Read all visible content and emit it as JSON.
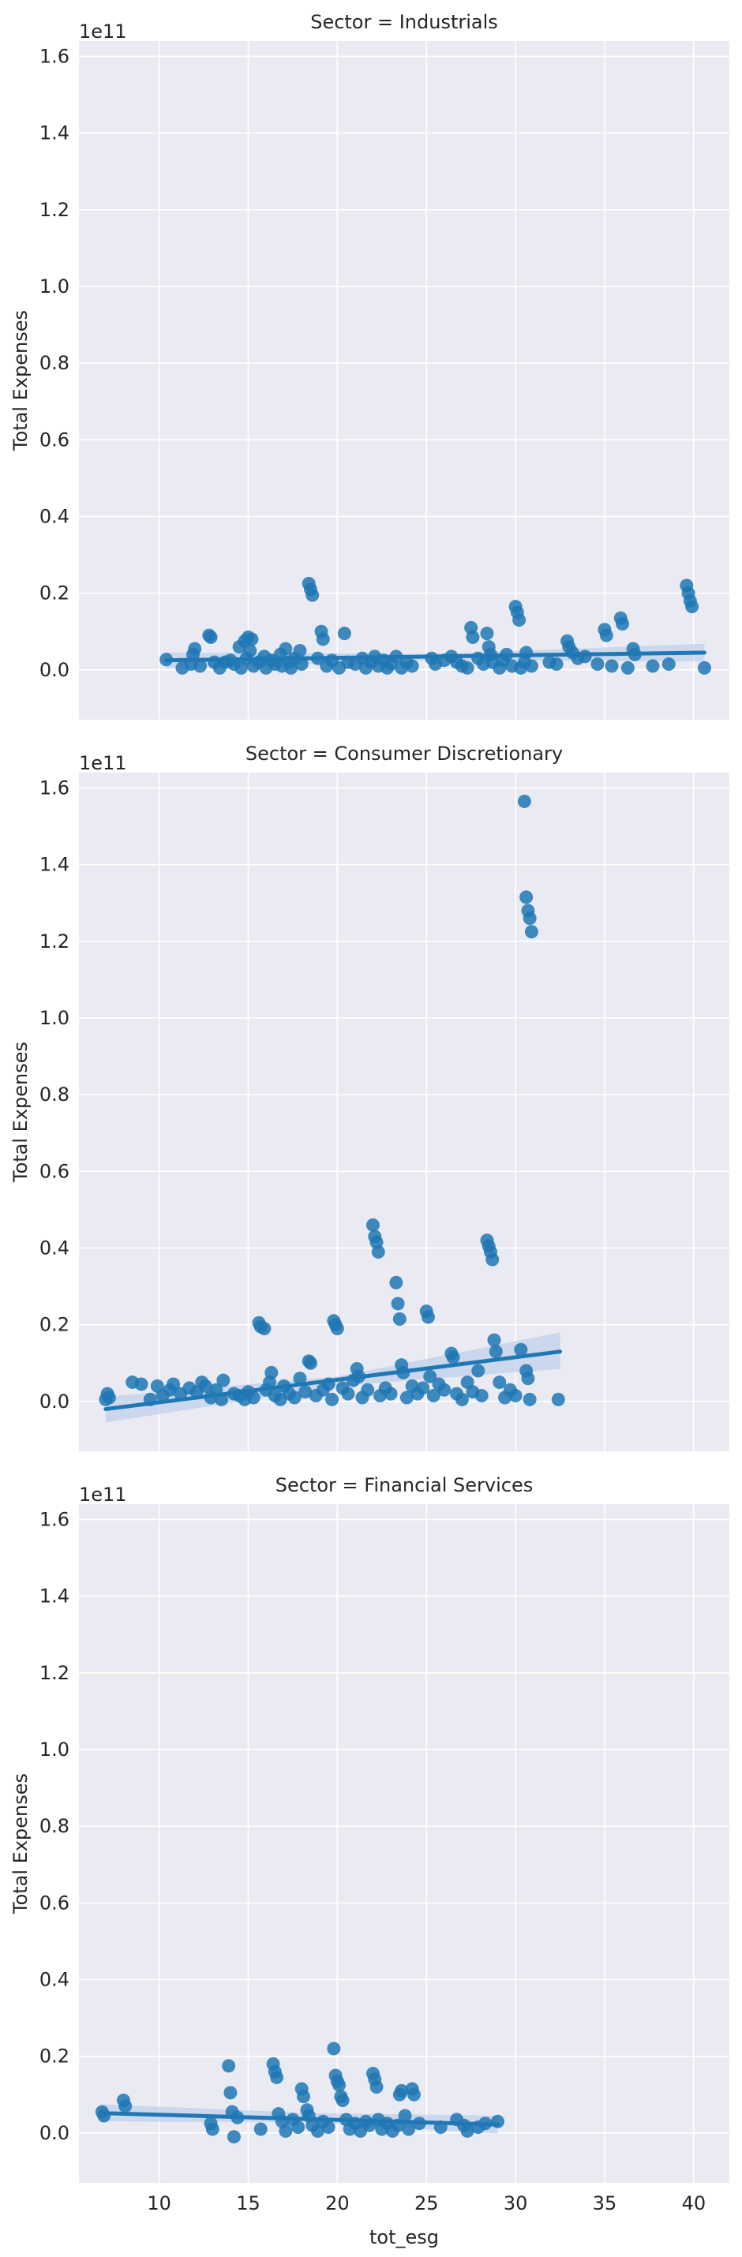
{
  "figure": {
    "accent_color": "#1f77b4",
    "ci_color": "#aec7e8",
    "panel_background": "#eaeaf2",
    "xlabel": "tot_esg"
  },
  "chart_data": [
    {
      "type": "scatter",
      "title": "Sector = Industrials",
      "ylabel": "Total Expenses",
      "y_offset_label": "1e11",
      "xlim": [
        5.5,
        42.0
      ],
      "ylim": [
        -0.13,
        1.64
      ],
      "xticks": [
        10,
        15,
        20,
        25,
        30,
        35,
        40
      ],
      "yticks": [
        0.0,
        0.2,
        0.4,
        0.6,
        0.8,
        1.0,
        1.2,
        1.4,
        1.6
      ],
      "ytick_labels": [
        "0.0",
        "0.2",
        "0.4",
        "0.6",
        "0.8",
        "1.0",
        "1.2",
        "1.4",
        "1.6"
      ],
      "show_xtick_labels": false,
      "regression": {
        "x": [
          10.4,
          40.6
        ],
        "y": [
          0.025,
          0.045
        ]
      },
      "ci_band": {
        "x": [
          10.4,
          25.5,
          40.6
        ],
        "lower": [
          0.005,
          0.025,
          0.022
        ],
        "upper": [
          0.045,
          0.042,
          0.068
        ]
      },
      "points": [
        [
          10.4,
          0.027
        ],
        [
          11.3,
          0.005
        ],
        [
          11.8,
          0.015
        ],
        [
          11.9,
          0.04
        ],
        [
          12.0,
          0.055
        ],
        [
          12.3,
          0.01
        ],
        [
          12.8,
          0.09
        ],
        [
          12.9,
          0.085
        ],
        [
          13.1,
          0.02
        ],
        [
          13.4,
          0.005
        ],
        [
          13.7,
          0.02
        ],
        [
          14.0,
          0.025
        ],
        [
          14.2,
          0.015
        ],
        [
          14.5,
          0.06
        ],
        [
          14.6,
          0.005
        ],
        [
          14.8,
          0.075
        ],
        [
          14.9,
          0.03
        ],
        [
          15.0,
          0.085
        ],
        [
          15.1,
          0.05
        ],
        [
          15.2,
          0.08
        ],
        [
          15.3,
          0.01
        ],
        [
          15.6,
          0.02
        ],
        [
          15.9,
          0.035
        ],
        [
          16.0,
          0.005
        ],
        [
          16.3,
          0.025
        ],
        [
          16.5,
          0.015
        ],
        [
          16.8,
          0.04
        ],
        [
          16.9,
          0.01
        ],
        [
          17.1,
          0.055
        ],
        [
          17.3,
          0.02
        ],
        [
          17.4,
          0.005
        ],
        [
          17.6,
          0.03
        ],
        [
          17.9,
          0.05
        ],
        [
          18.0,
          0.015
        ],
        [
          18.4,
          0.225
        ],
        [
          18.5,
          0.21
        ],
        [
          18.6,
          0.195
        ],
        [
          18.9,
          0.03
        ],
        [
          19.1,
          0.1
        ],
        [
          19.2,
          0.08
        ],
        [
          19.4,
          0.01
        ],
        [
          19.7,
          0.025
        ],
        [
          20.1,
          0.005
        ],
        [
          20.4,
          0.095
        ],
        [
          20.6,
          0.02
        ],
        [
          21.0,
          0.015
        ],
        [
          21.4,
          0.03
        ],
        [
          21.6,
          0.005
        ],
        [
          21.9,
          0.02
        ],
        [
          22.1,
          0.035
        ],
        [
          22.3,
          0.01
        ],
        [
          22.6,
          0.025
        ],
        [
          22.8,
          0.005
        ],
        [
          23.0,
          0.015
        ],
        [
          23.3,
          0.035
        ],
        [
          23.6,
          0.005
        ],
        [
          23.9,
          0.02
        ],
        [
          24.2,
          0.01
        ],
        [
          25.3,
          0.03
        ],
        [
          25.5,
          0.015
        ],
        [
          26.0,
          0.025
        ],
        [
          26.4,
          0.035
        ],
        [
          26.7,
          0.02
        ],
        [
          27.0,
          0.01
        ],
        [
          27.3,
          0.005
        ],
        [
          27.5,
          0.11
        ],
        [
          27.6,
          0.085
        ],
        [
          27.9,
          0.03
        ],
        [
          28.2,
          0.015
        ],
        [
          28.4,
          0.095
        ],
        [
          28.5,
          0.06
        ],
        [
          28.6,
          0.04
        ],
        [
          28.7,
          0.02
        ],
        [
          29.1,
          0.005
        ],
        [
          29.3,
          0.025
        ],
        [
          29.5,
          0.04
        ],
        [
          29.8,
          0.01
        ],
        [
          30.0,
          0.165
        ],
        [
          30.1,
          0.15
        ],
        [
          30.2,
          0.13
        ],
        [
          30.3,
          0.005
        ],
        [
          30.5,
          0.02
        ],
        [
          30.6,
          0.045
        ],
        [
          30.9,
          0.01
        ],
        [
          31.9,
          0.02
        ],
        [
          32.3,
          0.015
        ],
        [
          32.9,
          0.075
        ],
        [
          33.0,
          0.06
        ],
        [
          33.2,
          0.045
        ],
        [
          33.5,
          0.03
        ],
        [
          33.9,
          0.035
        ],
        [
          34.6,
          0.015
        ],
        [
          35.0,
          0.105
        ],
        [
          35.1,
          0.09
        ],
        [
          35.4,
          0.01
        ],
        [
          35.9,
          0.135
        ],
        [
          36.0,
          0.12
        ],
        [
          36.3,
          0.005
        ],
        [
          36.6,
          0.055
        ],
        [
          36.7,
          0.04
        ],
        [
          37.7,
          0.01
        ],
        [
          38.6,
          0.015
        ],
        [
          39.6,
          0.22
        ],
        [
          39.7,
          0.2
        ],
        [
          39.8,
          0.18
        ],
        [
          39.9,
          0.165
        ],
        [
          40.6,
          0.005
        ]
      ]
    },
    {
      "type": "scatter",
      "title": "Sector = Consumer Discretionary",
      "ylabel": "Total Expenses",
      "y_offset_label": "1e11",
      "xlim": [
        5.5,
        42.0
      ],
      "ylim": [
        -0.13,
        1.64
      ],
      "xticks": [
        10,
        15,
        20,
        25,
        30,
        35,
        40
      ],
      "yticks": [
        0.0,
        0.2,
        0.4,
        0.6,
        0.8,
        1.0,
        1.2,
        1.4,
        1.6
      ],
      "ytick_labels": [
        "0.0",
        "0.2",
        "0.4",
        "0.6",
        "0.8",
        "1.0",
        "1.2",
        "1.4",
        "1.6"
      ],
      "show_xtick_labels": false,
      "regression": {
        "x": [
          7.0,
          32.5
        ],
        "y": [
          -0.02,
          0.13
        ]
      },
      "ci_band": {
        "x": [
          7.0,
          20.0,
          32.5
        ],
        "lower": [
          -0.055,
          0.04,
          0.085
        ],
        "upper": [
          0.012,
          0.065,
          0.18
        ]
      },
      "points": [
        [
          7.0,
          0.005
        ],
        [
          7.1,
          0.02
        ],
        [
          7.2,
          0.01
        ],
        [
          8.5,
          0.05
        ],
        [
          9.0,
          0.045
        ],
        [
          9.5,
          0.005
        ],
        [
          9.9,
          0.04
        ],
        [
          10.2,
          0.015
        ],
        [
          10.6,
          0.03
        ],
        [
          10.8,
          0.045
        ],
        [
          11.2,
          0.02
        ],
        [
          11.7,
          0.035
        ],
        [
          12.1,
          0.025
        ],
        [
          12.4,
          0.05
        ],
        [
          12.6,
          0.04
        ],
        [
          12.9,
          0.01
        ],
        [
          13.2,
          0.03
        ],
        [
          13.5,
          0.005
        ],
        [
          13.6,
          0.055
        ],
        [
          14.2,
          0.02
        ],
        [
          14.5,
          0.015
        ],
        [
          14.8,
          0.005
        ],
        [
          15.0,
          0.025
        ],
        [
          15.3,
          0.01
        ],
        [
          15.6,
          0.205
        ],
        [
          15.7,
          0.195
        ],
        [
          15.9,
          0.19
        ],
        [
          16.0,
          0.03
        ],
        [
          16.2,
          0.05
        ],
        [
          16.3,
          0.075
        ],
        [
          16.5,
          0.015
        ],
        [
          16.8,
          0.005
        ],
        [
          17.0,
          0.04
        ],
        [
          17.3,
          0.02
        ],
        [
          17.6,
          0.01
        ],
        [
          17.9,
          0.06
        ],
        [
          18.2,
          0.025
        ],
        [
          18.4,
          0.105
        ],
        [
          18.5,
          0.1
        ],
        [
          18.8,
          0.015
        ],
        [
          19.2,
          0.03
        ],
        [
          19.5,
          0.045
        ],
        [
          19.7,
          0.005
        ],
        [
          19.8,
          0.21
        ],
        [
          19.9,
          0.2
        ],
        [
          20.0,
          0.19
        ],
        [
          20.3,
          0.035
        ],
        [
          20.6,
          0.02
        ],
        [
          20.9,
          0.055
        ],
        [
          21.1,
          0.085
        ],
        [
          21.2,
          0.065
        ],
        [
          21.4,
          0.01
        ],
        [
          21.7,
          0.03
        ],
        [
          22.0,
          0.46
        ],
        [
          22.1,
          0.43
        ],
        [
          22.2,
          0.415
        ],
        [
          22.3,
          0.39
        ],
        [
          22.4,
          0.015
        ],
        [
          22.7,
          0.035
        ],
        [
          23.0,
          0.02
        ],
        [
          23.3,
          0.31
        ],
        [
          23.4,
          0.255
        ],
        [
          23.5,
          0.215
        ],
        [
          23.6,
          0.095
        ],
        [
          23.7,
          0.075
        ],
        [
          23.9,
          0.01
        ],
        [
          24.2,
          0.04
        ],
        [
          24.5,
          0.02
        ],
        [
          24.8,
          0.035
        ],
        [
          25.0,
          0.235
        ],
        [
          25.1,
          0.22
        ],
        [
          25.2,
          0.065
        ],
        [
          25.4,
          0.015
        ],
        [
          25.7,
          0.045
        ],
        [
          26.0,
          0.03
        ],
        [
          26.4,
          0.125
        ],
        [
          26.5,
          0.115
        ],
        [
          26.7,
          0.02
        ],
        [
          27.0,
          0.005
        ],
        [
          27.3,
          0.05
        ],
        [
          27.6,
          0.025
        ],
        [
          27.9,
          0.08
        ],
        [
          28.1,
          0.015
        ],
        [
          28.4,
          0.42
        ],
        [
          28.5,
          0.405
        ],
        [
          28.6,
          0.39
        ],
        [
          28.7,
          0.37
        ],
        [
          28.8,
          0.16
        ],
        [
          28.9,
          0.13
        ],
        [
          29.1,
          0.05
        ],
        [
          29.4,
          0.01
        ],
        [
          29.7,
          0.03
        ],
        [
          30.0,
          0.015
        ],
        [
          30.3,
          0.135
        ],
        [
          30.5,
          1.565
        ],
        [
          30.6,
          1.315
        ],
        [
          30.7,
          1.28
        ],
        [
          30.8,
          1.26
        ],
        [
          30.9,
          1.225
        ],
        [
          30.6,
          0.08
        ],
        [
          30.7,
          0.06
        ],
        [
          30.8,
          0.005
        ],
        [
          32.4,
          0.005
        ]
      ]
    },
    {
      "type": "scatter",
      "title": "Sector = Financial Services",
      "ylabel": "Total Expenses",
      "y_offset_label": "1e11",
      "xlim": [
        5.5,
        42.0
      ],
      "ylim": [
        -0.13,
        1.64
      ],
      "xticks": [
        10,
        15,
        20,
        25,
        30,
        35,
        40
      ],
      "yticks": [
        0.0,
        0.2,
        0.4,
        0.6,
        0.8,
        1.0,
        1.2,
        1.4,
        1.6
      ],
      "ytick_labels": [
        "0.0",
        "0.2",
        "0.4",
        "0.6",
        "0.8",
        "1.0",
        "1.2",
        "1.4",
        "1.6"
      ],
      "show_xtick_labels": true,
      "regression": {
        "x": [
          6.7,
          29.0
        ],
        "y": [
          0.052,
          0.022
        ]
      },
      "ci_band": {
        "x": [
          6.7,
          18.5,
          29.0
        ],
        "lower": [
          0.03,
          0.028,
          -0.002
        ],
        "upper": [
          0.075,
          0.052,
          0.045
        ]
      },
      "points": [
        [
          6.8,
          0.055
        ],
        [
          6.9,
          0.045
        ],
        [
          8.0,
          0.085
        ],
        [
          8.1,
          0.07
        ],
        [
          12.9,
          0.025
        ],
        [
          13.0,
          0.01
        ],
        [
          13.9,
          0.175
        ],
        [
          14.0,
          0.105
        ],
        [
          14.1,
          0.055
        ],
        [
          14.2,
          -0.01
        ],
        [
          14.4,
          0.04
        ],
        [
          15.7,
          0.01
        ],
        [
          16.4,
          0.18
        ],
        [
          16.5,
          0.16
        ],
        [
          16.6,
          0.145
        ],
        [
          16.7,
          0.05
        ],
        [
          16.9,
          0.03
        ],
        [
          17.1,
          0.005
        ],
        [
          17.5,
          0.035
        ],
        [
          17.8,
          0.015
        ],
        [
          18.0,
          0.115
        ],
        [
          18.1,
          0.095
        ],
        [
          18.3,
          0.06
        ],
        [
          18.4,
          0.045
        ],
        [
          18.6,
          0.02
        ],
        [
          18.9,
          0.005
        ],
        [
          19.2,
          0.03
        ],
        [
          19.5,
          0.015
        ],
        [
          19.8,
          0.22
        ],
        [
          19.9,
          0.15
        ],
        [
          20.0,
          0.135
        ],
        [
          20.1,
          0.125
        ],
        [
          20.2,
          0.095
        ],
        [
          20.3,
          0.085
        ],
        [
          20.5,
          0.035
        ],
        [
          20.7,
          0.01
        ],
        [
          21.0,
          0.025
        ],
        [
          21.3,
          0.005
        ],
        [
          21.6,
          0.03
        ],
        [
          21.8,
          0.02
        ],
        [
          22.0,
          0.155
        ],
        [
          22.1,
          0.14
        ],
        [
          22.2,
          0.12
        ],
        [
          22.3,
          0.035
        ],
        [
          22.5,
          0.01
        ],
        [
          22.8,
          0.025
        ],
        [
          23.1,
          0.005
        ],
        [
          23.4,
          0.02
        ],
        [
          23.5,
          0.1
        ],
        [
          23.6,
          0.11
        ],
        [
          23.8,
          0.045
        ],
        [
          24.0,
          0.01
        ],
        [
          24.2,
          0.115
        ],
        [
          24.3,
          0.1
        ],
        [
          24.6,
          0.025
        ],
        [
          25.8,
          0.015
        ],
        [
          26.7,
          0.035
        ],
        [
          27.1,
          0.02
        ],
        [
          27.3,
          0.005
        ],
        [
          27.9,
          0.015
        ],
        [
          28.3,
          0.025
        ],
        [
          29.0,
          0.03
        ]
      ]
    }
  ]
}
